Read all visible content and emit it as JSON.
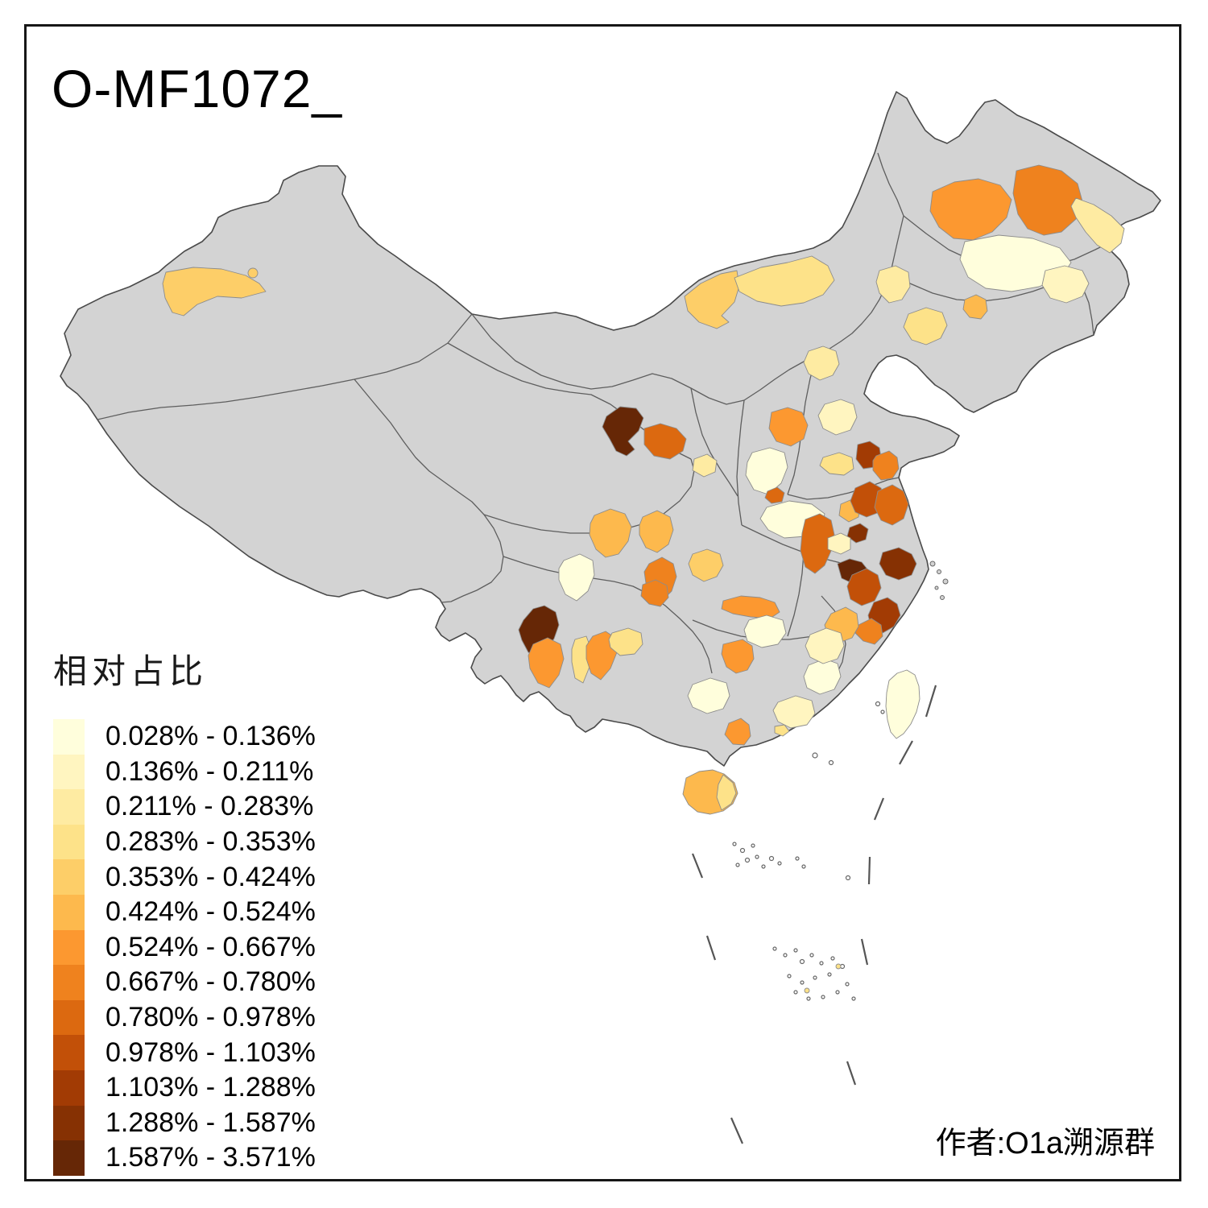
{
  "title": "O-MF1072_",
  "attribution": "作者:O1a溯源群",
  "legend": {
    "title": "相对占比",
    "items": [
      {
        "label": "0.028% - 0.136%",
        "color": "#FFFEDC"
      },
      {
        "label": "0.136% - 0.211%",
        "color": "#FFF5C0"
      },
      {
        "label": "0.211% - 0.283%",
        "color": "#FEEBA2"
      },
      {
        "label": "0.283% - 0.353%",
        "color": "#FDE289"
      },
      {
        "label": "0.353% - 0.424%",
        "color": "#FDCE68"
      },
      {
        "label": "0.424% - 0.524%",
        "color": "#FDB94D"
      },
      {
        "label": "0.524% - 0.667%",
        "color": "#FC9830"
      },
      {
        "label": "0.667% - 0.780%",
        "color": "#EF821E"
      },
      {
        "label": "0.780% - 0.978%",
        "color": "#DC6910"
      },
      {
        "label": "0.978% - 1.103%",
        "color": "#C25008"
      },
      {
        "label": "1.103% - 1.288%",
        "color": "#A23B04"
      },
      {
        "label": "1.288% - 1.587%",
        "color": "#863103"
      },
      {
        "label": "1.587% - 3.571%",
        "color": "#662706"
      }
    ]
  },
  "map": {
    "no_data_color": "#D3D3D3",
    "country_border_color": "#4A4A4A",
    "province_border_color": "#5E5E5E",
    "region_border_color": "#8C8C8C",
    "background_color": "#FFFFFF"
  }
}
